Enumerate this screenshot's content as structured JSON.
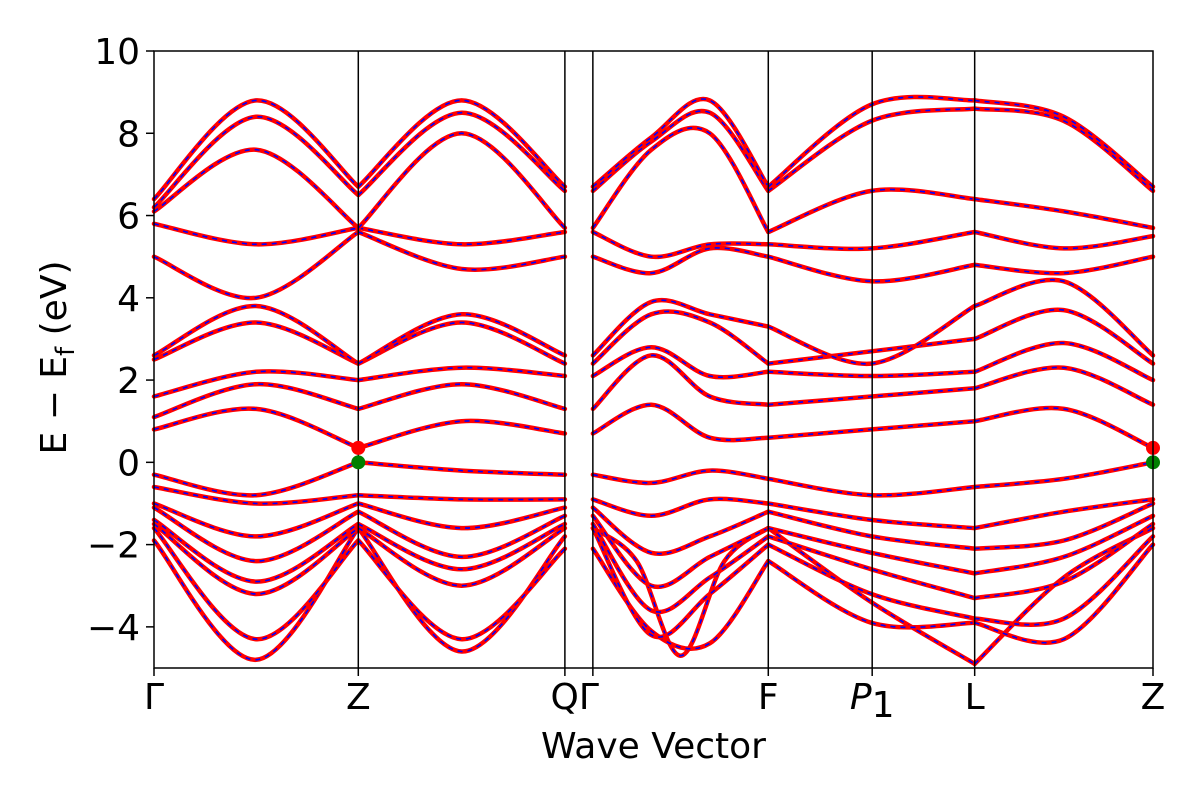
{
  "chart_data": {
    "type": "line",
    "xlabel": "Wave Vector",
    "ylabel": "E − E",
    "ylabel_sub": "f",
    "ylabel_unit": " (eV)",
    "ylim": [
      -5,
      10
    ],
    "yticks": [
      -4,
      -2,
      0,
      2,
      4,
      6,
      8,
      10
    ],
    "ytick_labels": [
      "−4",
      "−2",
      "0",
      "2",
      "4",
      "6",
      "8",
      "10"
    ],
    "xlim": [
      0,
      1
    ],
    "high_symmetry_points": [
      {
        "label": "Γ",
        "x": 0.0
      },
      {
        "label": "Z",
        "x": 0.2045
      },
      {
        "label": "Q",
        "x": 0.4113
      },
      {
        "label": "Γ",
        "x": 0.4393
      },
      {
        "label": "F",
        "x": 0.6149
      },
      {
        "label": "P",
        "sub": "1",
        "x": 0.7189
      },
      {
        "label": "L",
        "x": 0.8215
      },
      {
        "label": "Z",
        "x": 1.0
      }
    ],
    "colors": {
      "band_outer": "#ff0000",
      "band_dash": "#0000ff",
      "marker": "#008000"
    },
    "markers": [
      {
        "x": 0.2045,
        "y": 0.0,
        "color": "#008000"
      },
      {
        "x": 0.2045,
        "y": 0.35,
        "color": "#ff0000"
      },
      {
        "x": 1.0,
        "y": 0.0,
        "color": "#008000"
      },
      {
        "x": 1.0,
        "y": 0.35,
        "color": "#ff0000"
      }
    ],
    "series": [
      {
        "segment_values": [
          [
            -1.9,
            -4.8,
            -1.6
          ],
          [
            -1.6,
            -4.6,
            -1.8
          ],
          [
            -1.6,
            -2.4,
            -4.7,
            -2.4,
            -1.6
          ],
          [
            -1.6,
            -3.4,
            -4.9
          ],
          [
            -4.9,
            -2.8,
            -1.6
          ]
        ]
      },
      {
        "segment_values": [
          [
            -1.6,
            -4.3,
            -1.9
          ],
          [
            -1.9,
            -4.3,
            -2.1
          ],
          [
            -2.1,
            -4.1,
            -4.4,
            -2.4
          ],
          [
            -2.4,
            -3.9,
            -3.9
          ],
          [
            -3.9,
            -4.3,
            -2.0
          ]
        ]
      },
      {
        "segment_values": [
          [
            -1.5,
            -3.2,
            -1.6
          ],
          [
            -1.6,
            -3.0,
            -1.6
          ],
          [
            -1.6,
            -4.2,
            -3.2,
            -2.0
          ],
          [
            -2.0,
            -3.2,
            -3.8
          ],
          [
            -3.8,
            -3.8,
            -1.8
          ]
        ]
      },
      {
        "segment_values": [
          [
            -1.4,
            -2.9,
            -1.5
          ],
          [
            -1.5,
            -2.6,
            -1.5
          ],
          [
            -1.5,
            -3.6,
            -2.8,
            -1.8
          ],
          [
            -1.8,
            -2.6,
            -3.3
          ],
          [
            -3.3,
            -2.9,
            -1.5
          ]
        ]
      },
      {
        "segment_values": [
          [
            -1.1,
            -2.4,
            -1.2
          ],
          [
            -1.2,
            -2.3,
            -1.3
          ],
          [
            -1.3,
            -3.0,
            -2.3,
            -1.6
          ],
          [
            -1.6,
            -2.2,
            -2.7
          ],
          [
            -2.7,
            -2.3,
            -1.3
          ]
        ]
      },
      {
        "segment_values": [
          [
            -1.0,
            -1.8,
            -1.0
          ],
          [
            -1.0,
            -1.6,
            -1.1
          ],
          [
            -1.1,
            -2.2,
            -1.8,
            -1.2
          ],
          [
            -1.2,
            -1.8,
            -2.1
          ],
          [
            -2.1,
            -1.9,
            -1.0
          ]
        ]
      },
      {
        "segment_values": [
          [
            -0.6,
            -1.0,
            -0.8
          ],
          [
            -0.8,
            -0.9,
            -0.9
          ],
          [
            -0.9,
            -1.3,
            -0.9,
            -1.0
          ],
          [
            -1.0,
            -1.4,
            -1.6
          ],
          [
            -1.6,
            -1.2,
            -0.9
          ]
        ]
      },
      {
        "segment_values": [
          [
            -0.3,
            -0.8,
            0.0
          ],
          [
            0.0,
            -0.2,
            -0.3
          ],
          [
            -0.3,
            -0.5,
            -0.2,
            -0.4
          ],
          [
            -0.4,
            -0.8,
            -0.6
          ],
          [
            -0.6,
            -0.4,
            0.0
          ]
        ]
      },
      {
        "segment_values": [
          [
            0.8,
            1.3,
            0.35
          ],
          [
            0.35,
            1.0,
            0.7
          ],
          [
            0.7,
            1.4,
            0.6,
            0.6
          ],
          [
            0.6,
            0.8,
            1.0
          ],
          [
            1.0,
            1.3,
            0.35
          ]
        ]
      },
      {
        "segment_values": [
          [
            1.1,
            1.9,
            1.3
          ],
          [
            1.3,
            1.9,
            1.3
          ],
          [
            1.3,
            2.6,
            1.6,
            1.4
          ],
          [
            1.4,
            1.6,
            1.8
          ],
          [
            1.8,
            2.3,
            1.4
          ]
        ]
      },
      {
        "segment_values": [
          [
            1.6,
            2.2,
            2.0
          ],
          [
            2.0,
            2.3,
            2.1
          ],
          [
            2.1,
            2.8,
            2.1,
            2.2
          ],
          [
            2.2,
            2.1,
            2.2
          ],
          [
            2.2,
            2.9,
            2.0
          ]
        ]
      },
      {
        "segment_values": [
          [
            2.5,
            3.4,
            2.4
          ],
          [
            2.4,
            3.4,
            2.4
          ],
          [
            2.4,
            3.6,
            3.4,
            2.4
          ],
          [
            2.4,
            2.7,
            3.0
          ],
          [
            3.0,
            3.7,
            2.4
          ]
        ]
      },
      {
        "segment_values": [
          [
            2.6,
            3.8,
            2.4
          ],
          [
            2.4,
            3.6,
            2.6
          ],
          [
            2.6,
            3.9,
            3.6,
            3.3
          ],
          [
            3.3,
            2.4,
            3.8
          ],
          [
            3.8,
            4.4,
            2.6
          ]
        ]
      },
      {
        "segment_values": [
          [
            5.0,
            4.0,
            5.6
          ],
          [
            5.6,
            4.7,
            5.0
          ],
          [
            5.0,
            4.6,
            5.2,
            5.0
          ],
          [
            5.0,
            4.4,
            4.8
          ],
          [
            4.8,
            4.6,
            5.0
          ]
        ]
      },
      {
        "segment_values": [
          [
            5.8,
            5.3,
            5.7
          ],
          [
            5.7,
            5.3,
            5.6
          ],
          [
            5.6,
            5.0,
            5.3,
            5.3
          ],
          [
            5.3,
            5.2,
            5.6
          ],
          [
            5.6,
            5.2,
            5.5
          ]
        ]
      },
      {
        "segment_values": [
          [
            6.1,
            7.6,
            5.7
          ],
          [
            5.7,
            8.0,
            5.7
          ],
          [
            5.7,
            7.6,
            8.0,
            5.6
          ],
          [
            5.6,
            6.6,
            6.4
          ],
          [
            6.4,
            6.1,
            5.7
          ]
        ]
      },
      {
        "segment_values": [
          [
            6.2,
            8.4,
            6.5
          ],
          [
            6.5,
            8.5,
            6.6
          ],
          [
            6.6,
            7.8,
            8.5,
            6.6
          ],
          [
            6.6,
            8.3,
            8.6
          ],
          [
            8.6,
            8.3,
            6.6
          ]
        ]
      },
      {
        "segment_values": [
          [
            6.4,
            8.8,
            6.7
          ],
          [
            6.7,
            8.8,
            6.7
          ],
          [
            6.7,
            7.9,
            8.8,
            6.7
          ],
          [
            6.7,
            8.7,
            8.8
          ],
          [
            8.8,
            8.4,
            6.7
          ]
        ]
      }
    ]
  }
}
